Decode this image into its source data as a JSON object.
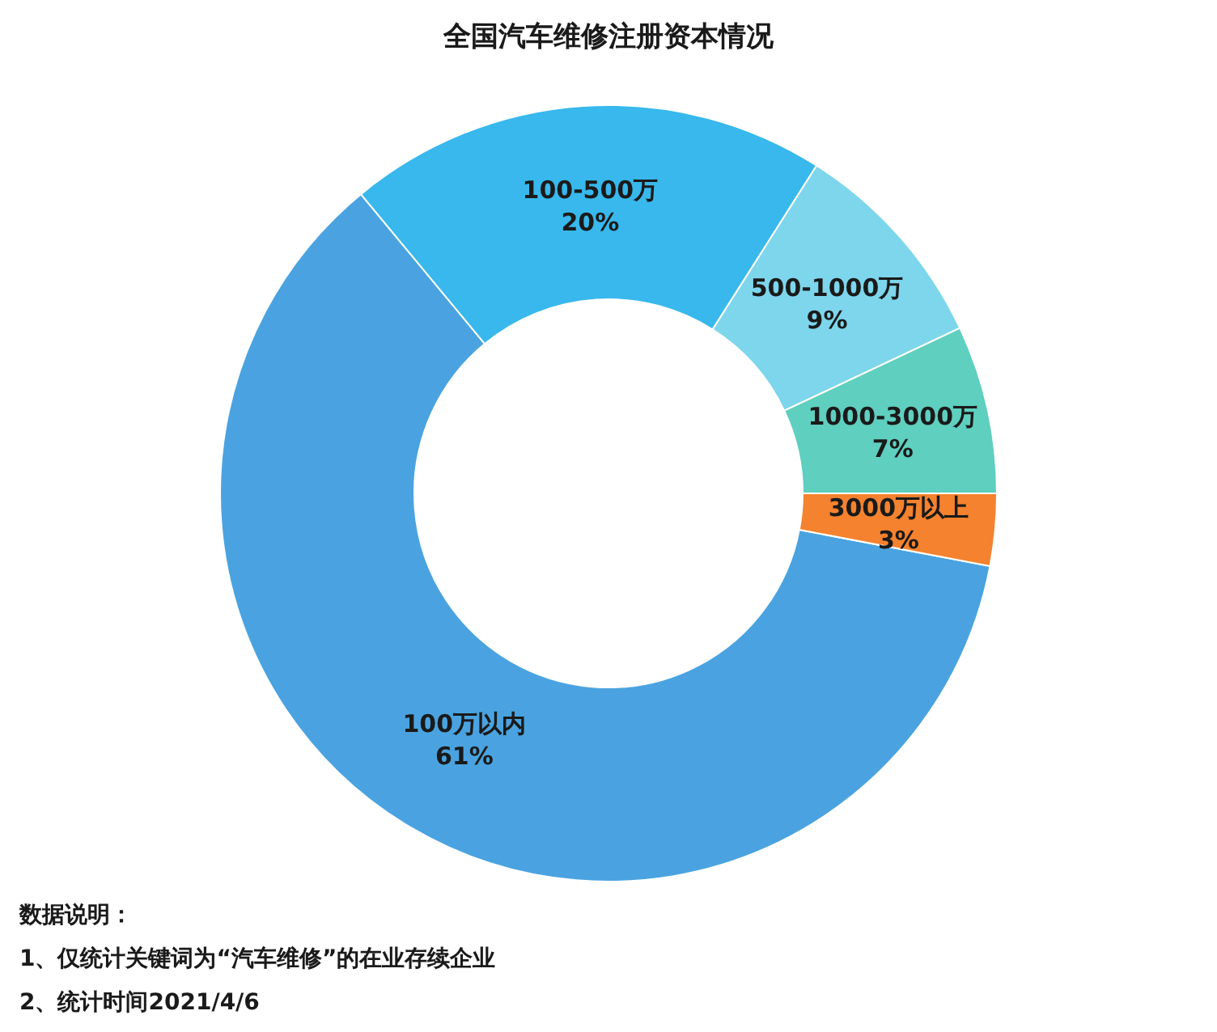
{
  "chart_data": {
    "type": "donut",
    "title": "全国汽车维修注册资本情况",
    "categories": [
      "100万以内",
      "100-500万",
      "500-1000万",
      "1000-3000万",
      "3000万以上"
    ],
    "values": [
      61,
      20,
      9,
      7,
      3
    ],
    "value_labels": [
      "61%",
      "20%",
      "9%",
      "7%",
      "3%"
    ],
    "colors": [
      "#4aa3e0",
      "#38b8ec",
      "#7dd6ec",
      "#5fcfbf",
      "#f5822e"
    ],
    "annotations": [
      "数据说明：",
      "1、仅统计关键词为“汽车维修”的在业存续企业",
      "2、统计时间2021/4/6"
    ]
  }
}
